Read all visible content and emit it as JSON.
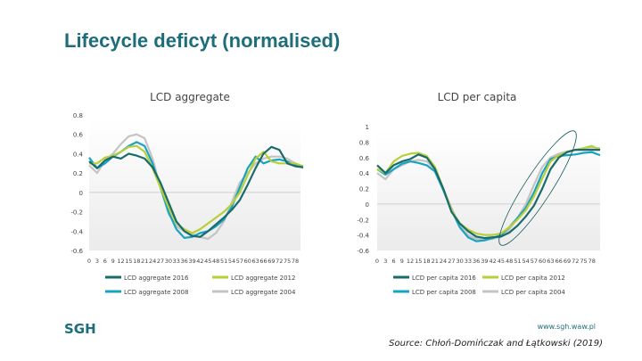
{
  "slide": {
    "title": "Lifecycle deficyt (normalised)",
    "logo": "SGH",
    "url": "www.sgh.waw.pl",
    "source": "Source: Chłoń-Domińczak and Łątkowski (2019)"
  },
  "chart_data": [
    {
      "type": "line",
      "title": "LCD aggregate",
      "xlabel": "",
      "ylabel": "",
      "ylim": [
        -0.6,
        0.8
      ],
      "xlim": [
        0,
        80
      ],
      "y_ticks": [
        "0.8",
        "0.6",
        "0.4",
        "0.2",
        "0",
        "-0.2",
        "-0.4",
        "-0.6"
      ],
      "y_tick_values": [
        0.8,
        0.6,
        0.4,
        0.2,
        0,
        -0.2,
        -0.4,
        -0.6
      ],
      "x_ticks": [
        "0",
        "3",
        "6",
        "9",
        "12",
        "15",
        "18",
        "21",
        "24",
        "27",
        "30",
        "33",
        "36",
        "39",
        "42",
        "45",
        "48",
        "51",
        "54",
        "57",
        "60",
        "63",
        "66",
        "69",
        "72",
        "75",
        "78"
      ],
      "grid": false,
      "legend_position": "bottom",
      "x": [
        0,
        3,
        6,
        9,
        12,
        15,
        18,
        21,
        24,
        27,
        30,
        33,
        36,
        39,
        42,
        45,
        48,
        51,
        54,
        57,
        60,
        63,
        66,
        69,
        72,
        75,
        78,
        81
      ],
      "series": [
        {
          "name": "LCD aggregate 2016",
          "color": "#1a6b6b",
          "values": [
            0.32,
            0.25,
            0.33,
            0.37,
            0.35,
            0.4,
            0.38,
            0.35,
            0.26,
            0.1,
            -0.1,
            -0.3,
            -0.4,
            -0.45,
            -0.46,
            -0.4,
            -0.33,
            -0.26,
            -0.18,
            -0.08,
            0.08,
            0.25,
            0.4,
            0.47,
            0.44,
            0.3,
            0.27,
            0.26
          ]
        },
        {
          "name": "LCD aggregate 2012",
          "color": "#b8cf3a",
          "values": [
            0.3,
            0.3,
            0.36,
            0.38,
            0.42,
            0.47,
            0.48,
            0.42,
            0.25,
            0.05,
            -0.15,
            -0.32,
            -0.38,
            -0.42,
            -0.38,
            -0.32,
            -0.26,
            -0.2,
            -0.12,
            0.0,
            0.18,
            0.35,
            0.42,
            0.32,
            0.3,
            0.3,
            0.3,
            0.27
          ]
        },
        {
          "name": "LCD aggregate 2008",
          "color": "#1aa3c0",
          "values": [
            0.36,
            0.25,
            0.3,
            0.37,
            0.42,
            0.48,
            0.52,
            0.48,
            0.3,
            0.05,
            -0.2,
            -0.38,
            -0.47,
            -0.46,
            -0.42,
            -0.4,
            -0.35,
            -0.28,
            -0.15,
            0.05,
            0.25,
            0.37,
            0.3,
            0.33,
            0.34,
            0.32,
            0.28,
            0.27
          ]
        },
        {
          "name": "LCD aggregate 2004",
          "color": "#c4c4c4",
          "values": [
            0.28,
            0.2,
            0.33,
            0.4,
            0.5,
            0.58,
            0.6,
            0.56,
            0.35,
            0.05,
            -0.22,
            -0.35,
            -0.4,
            -0.43,
            -0.46,
            -0.48,
            -0.42,
            -0.3,
            -0.1,
            0.1,
            0.2,
            0.3,
            0.35,
            0.37,
            0.37,
            0.35,
            0.3,
            0.25
          ]
        }
      ]
    },
    {
      "type": "line",
      "title": "LCD per capita",
      "xlabel": "",
      "ylabel": "",
      "ylim": [
        -0.6,
        1.0
      ],
      "xlim": [
        0,
        81
      ],
      "y_ticks": [
        "1",
        "0.8",
        "0.6",
        "0.4",
        "0.2",
        "0",
        "-0.2",
        "-0.4",
        "-0.6"
      ],
      "y_tick_values": [
        1,
        0.8,
        0.6,
        0.4,
        0.2,
        0,
        -0.2,
        -0.4,
        -0.6
      ],
      "x_ticks": [
        "0",
        "3",
        "6",
        "9",
        "12",
        "15",
        "18",
        "21",
        "24",
        "27",
        "30",
        "33",
        "36",
        "39",
        "42",
        "45",
        "48",
        "51",
        "54",
        "57",
        "60",
        "63",
        "66",
        "69",
        "72",
        "75",
        "78"
      ],
      "grid": false,
      "legend_position": "bottom",
      "annotation": "ellipse highlighting ages ~45-69",
      "x": [
        0,
        3,
        6,
        9,
        12,
        15,
        18,
        21,
        24,
        27,
        30,
        33,
        36,
        39,
        42,
        45,
        48,
        51,
        54,
        57,
        60,
        63,
        66,
        69,
        72,
        75,
        78,
        81
      ],
      "series": [
        {
          "name": "LCD per capita 2016",
          "color": "#1a6b6b",
          "values": [
            0.5,
            0.4,
            0.5,
            0.55,
            0.58,
            0.64,
            0.6,
            0.45,
            0.2,
            -0.1,
            -0.25,
            -0.35,
            -0.42,
            -0.44,
            -0.43,
            -0.42,
            -0.37,
            -0.28,
            -0.16,
            -0.02,
            0.2,
            0.45,
            0.6,
            0.67,
            0.7,
            0.7,
            0.7,
            0.7
          ]
        },
        {
          "name": "LCD per capita 2012",
          "color": "#b8cf3a",
          "values": [
            0.45,
            0.4,
            0.55,
            0.62,
            0.65,
            0.66,
            0.62,
            0.48,
            0.2,
            -0.08,
            -0.25,
            -0.33,
            -0.38,
            -0.4,
            -0.4,
            -0.38,
            -0.3,
            -0.2,
            -0.08,
            0.1,
            0.33,
            0.55,
            0.63,
            0.67,
            0.7,
            0.72,
            0.75,
            0.7
          ]
        },
        {
          "name": "LCD per capita 2008",
          "color": "#1aa3c0",
          "values": [
            0.45,
            0.38,
            0.45,
            0.52,
            0.55,
            0.53,
            0.5,
            0.42,
            0.18,
            -0.08,
            -0.3,
            -0.43,
            -0.48,
            -0.47,
            -0.44,
            -0.4,
            -0.3,
            -0.18,
            -0.05,
            0.15,
            0.4,
            0.58,
            0.62,
            0.63,
            0.64,
            0.66,
            0.67,
            0.63
          ]
        },
        {
          "name": "LCD per capita 2004",
          "color": "#c4c4c4",
          "values": [
            0.4,
            0.32,
            0.45,
            0.5,
            0.55,
            0.57,
            0.55,
            0.45,
            0.2,
            -0.05,
            -0.28,
            -0.4,
            -0.45,
            -0.46,
            -0.45,
            -0.42,
            -0.33,
            -0.18,
            0.0,
            0.25,
            0.48,
            0.6,
            0.65,
            0.68,
            0.7,
            0.72,
            0.73,
            0.72
          ]
        }
      ]
    }
  ]
}
